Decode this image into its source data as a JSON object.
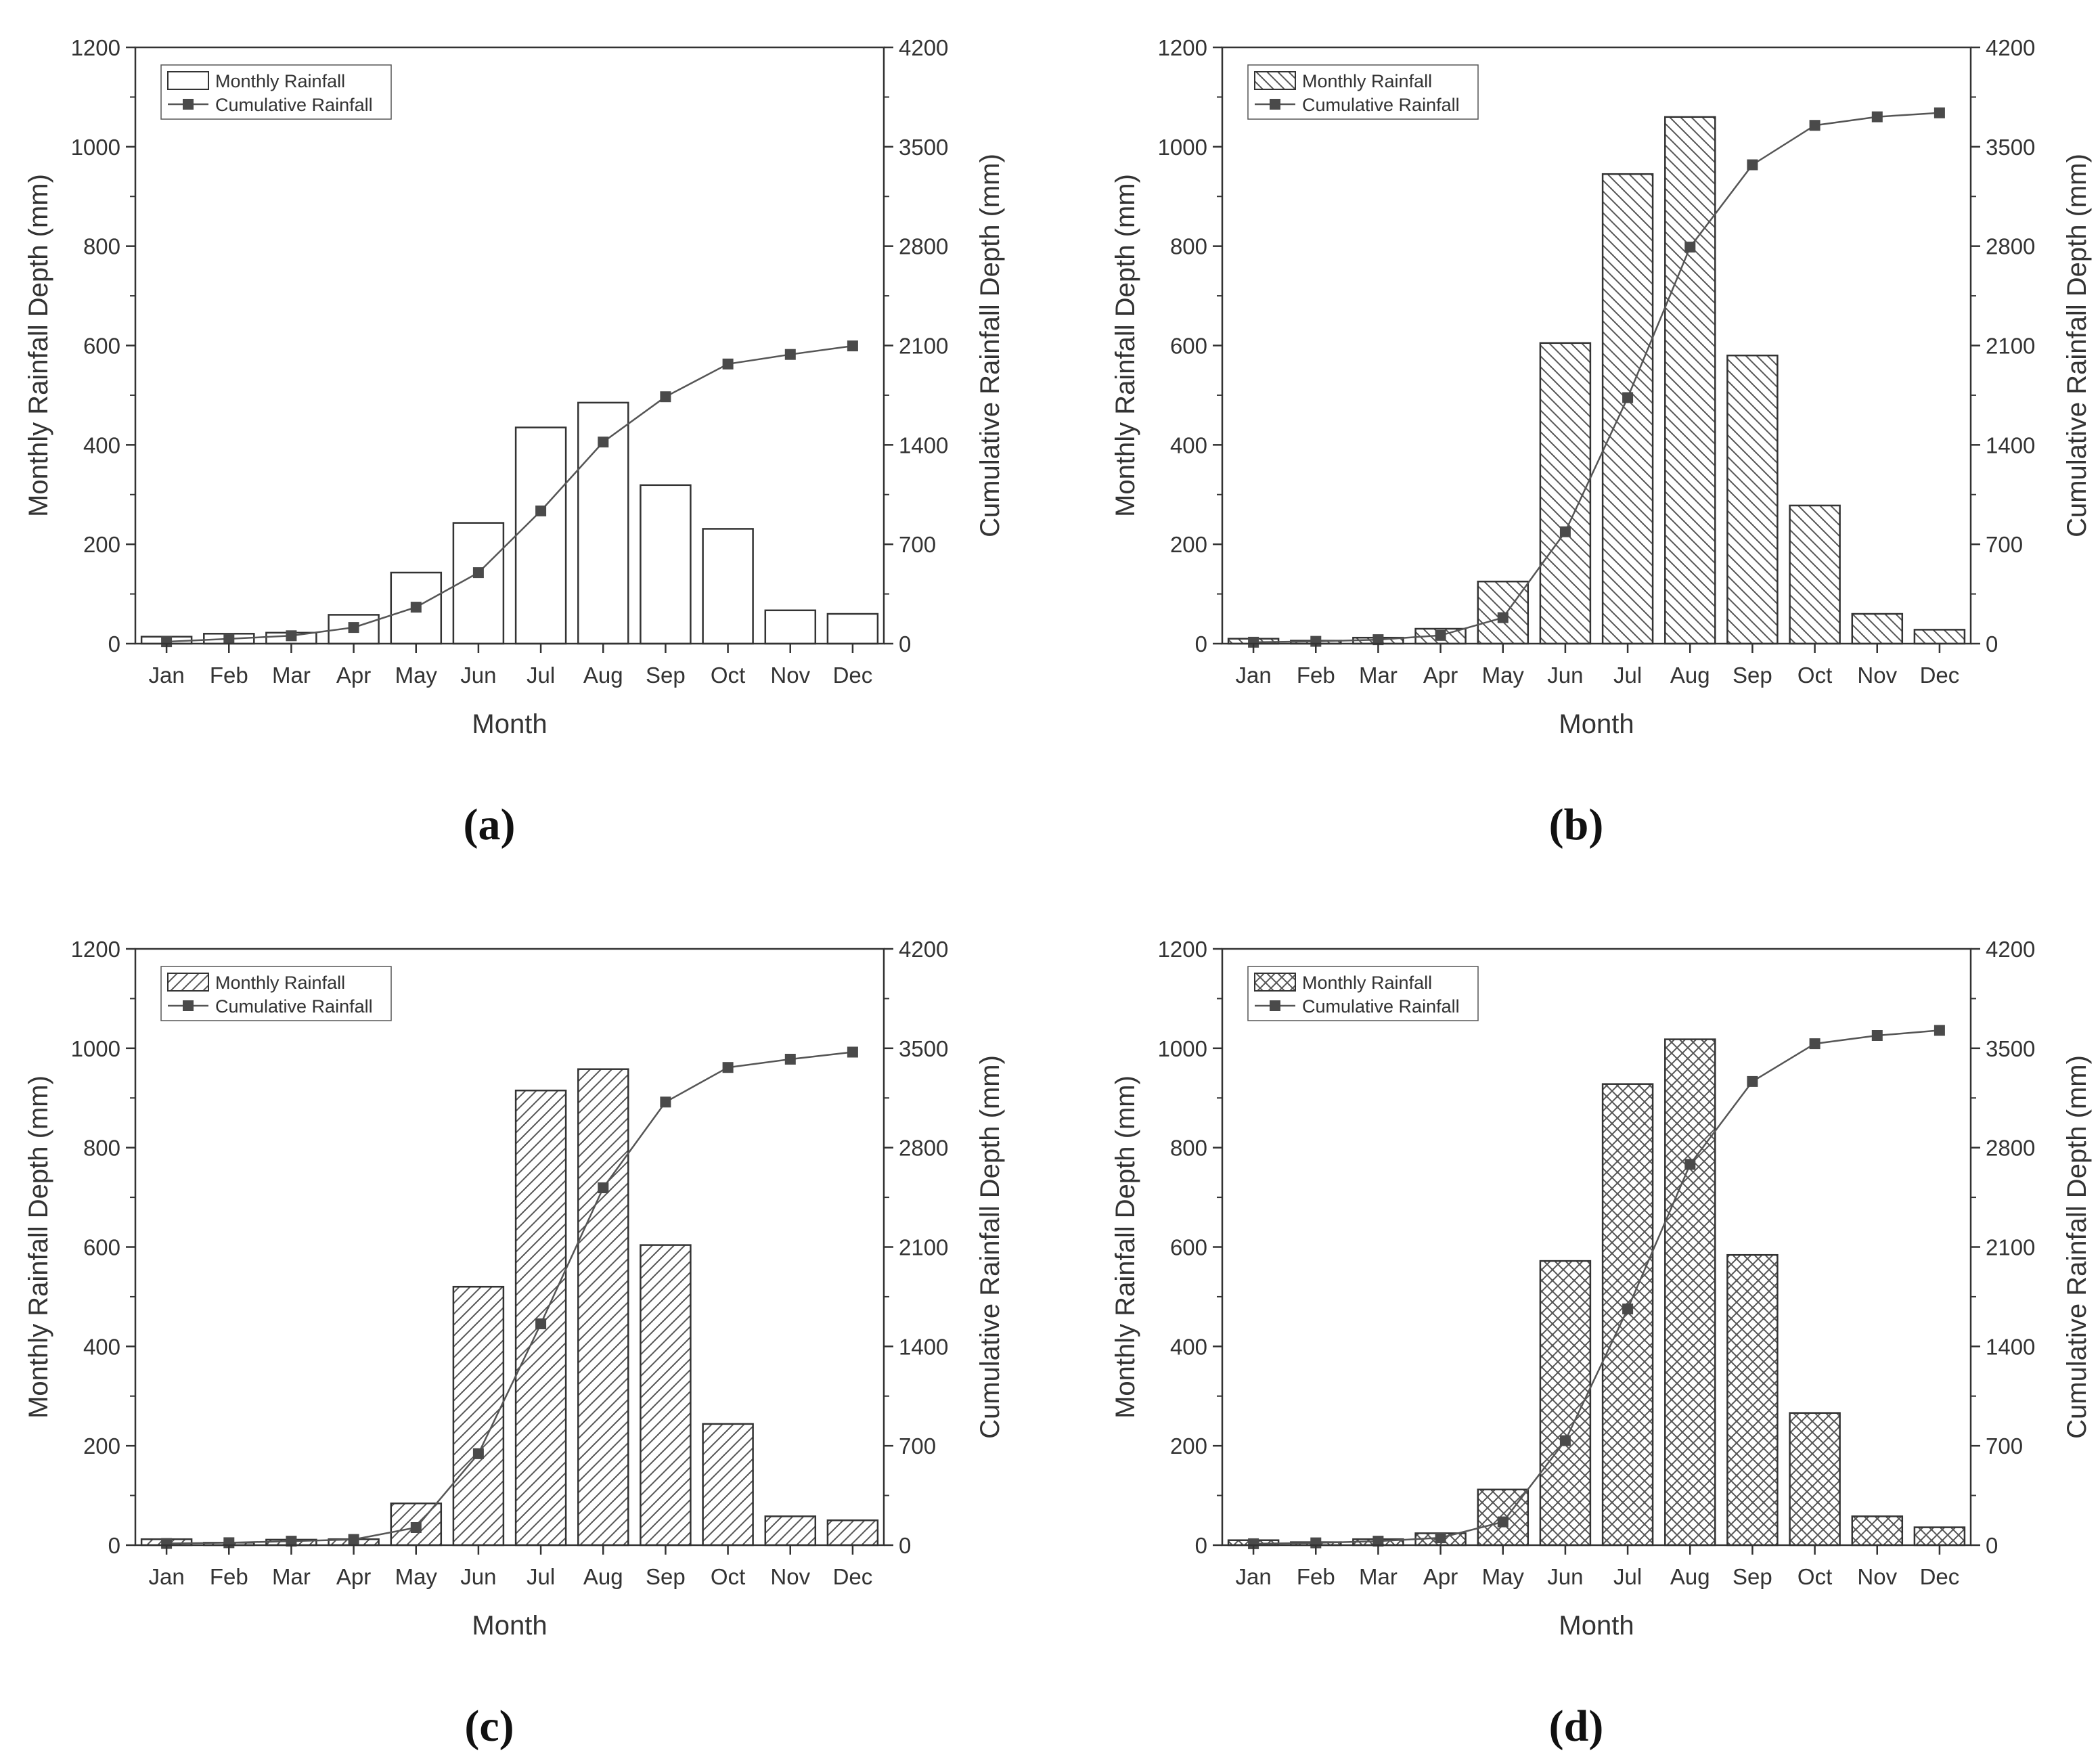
{
  "figure": {
    "shared": {
      "months": [
        "Jan",
        "Feb",
        "Mar",
        "Apr",
        "May",
        "Jun",
        "Jul",
        "Aug",
        "Sep",
        "Oct",
        "Nov",
        "Dec"
      ],
      "xlabel": "Month",
      "ylabel_left": "Monthly Rainfall Depth (mm)",
      "ylabel_right": "Cumulative Rainfall Depth (mm)",
      "left_ticks": [
        "0",
        "200",
        "400",
        "600",
        "800",
        "1000",
        "1200"
      ],
      "right_ticks": [
        "0",
        "700",
        "1400",
        "2100",
        "2800",
        "3500",
        "4200"
      ],
      "legend_bar": "Monthly Rainfall",
      "legend_line": "Cumulative Rainfall",
      "colors": {
        "line": "#555555",
        "marker": "#4a4a4a",
        "axis": "#333333",
        "bar_edge": "#333333"
      }
    }
  },
  "chart_data": [
    {
      "type": "bar",
      "panel": "a",
      "caption": "(a)",
      "pattern": "none",
      "categories": [
        "Jan",
        "Feb",
        "Mar",
        "Apr",
        "May",
        "Jun",
        "Jul",
        "Aug",
        "Sep",
        "Oct",
        "Nov",
        "Dec"
      ],
      "series": [
        {
          "name": "Monthly Rainfall",
          "type": "bar",
          "axis": "left",
          "values": [
            14,
            20,
            22,
            58,
            143,
            243,
            435,
            485,
            319,
            231,
            67,
            60
          ]
        },
        {
          "name": "Cumulative Rainfall",
          "type": "line",
          "axis": "right",
          "values": [
            14,
            34,
            56,
            114,
            257,
            500,
            935,
            1420,
            1739,
            1970,
            2037,
            2097
          ]
        }
      ],
      "xlabel": "Month",
      "ylabel": "Monthly Rainfall Depth (mm)",
      "ylabel_right": "Cumulative Rainfall Depth (mm)",
      "ylim": [
        0,
        1200
      ],
      "ylim_right": [
        0,
        4200
      ],
      "legend": "top-left",
      "grid": false
    },
    {
      "type": "bar",
      "panel": "b",
      "caption": "(b)",
      "pattern": "hatch-back",
      "categories": [
        "Jan",
        "Feb",
        "Mar",
        "Apr",
        "May",
        "Jun",
        "Jul",
        "Aug",
        "Sep",
        "Oct",
        "Nov",
        "Dec"
      ],
      "series": [
        {
          "name": "Monthly Rainfall",
          "type": "bar",
          "axis": "left",
          "values": [
            10,
            6,
            12,
            30,
            125,
            605,
            945,
            1060,
            580,
            278,
            60,
            28
          ]
        },
        {
          "name": "Cumulative Rainfall",
          "type": "line",
          "axis": "right",
          "values": [
            10,
            16,
            28,
            58,
            183,
            788,
            1733,
            2793,
            3373,
            3651,
            3711,
            3739
          ]
        }
      ],
      "xlabel": "Month",
      "ylabel": "Monthly Rainfall Depth (mm)",
      "ylabel_right": "Cumulative Rainfall Depth (mm)",
      "ylim": [
        0,
        1200
      ],
      "ylim_right": [
        0,
        4200
      ],
      "legend": "top-left",
      "grid": false
    },
    {
      "type": "bar",
      "panel": "c",
      "caption": "(c)",
      "pattern": "hatch-forward",
      "categories": [
        "Jan",
        "Feb",
        "Mar",
        "Apr",
        "May",
        "Jun",
        "Jul",
        "Aug",
        "Sep",
        "Oct",
        "Nov",
        "Dec"
      ],
      "series": [
        {
          "name": "Monthly Rainfall",
          "type": "bar",
          "axis": "left",
          "values": [
            12,
            5,
            11,
            12,
            84,
            520,
            915,
            958,
            604,
            244,
            58,
            50
          ]
        },
        {
          "name": "Cumulative Rainfall",
          "type": "line",
          "axis": "right",
          "values": [
            12,
            17,
            28,
            40,
            124,
            644,
            1559,
            2517,
            3121,
            3365,
            3423,
            3473
          ]
        }
      ],
      "xlabel": "Month",
      "ylabel": "Monthly Rainfall Depth (mm)",
      "ylabel_right": "Cumulative Rainfall Depth (mm)",
      "ylim": [
        0,
        1200
      ],
      "ylim_right": [
        0,
        4200
      ],
      "legend": "top-left",
      "grid": false
    },
    {
      "type": "bar",
      "panel": "d",
      "caption": "(d)",
      "pattern": "crosshatch",
      "categories": [
        "Jan",
        "Feb",
        "Mar",
        "Apr",
        "May",
        "Jun",
        "Jul",
        "Aug",
        "Sep",
        "Oct",
        "Nov",
        "Dec"
      ],
      "series": [
        {
          "name": "Monthly Rainfall",
          "type": "bar",
          "axis": "left",
          "values": [
            10,
            6,
            12,
            24,
            112,
            572,
            928,
            1018,
            584,
            266,
            58,
            36
          ]
        },
        {
          "name": "Cumulative Rainfall",
          "type": "line",
          "axis": "right",
          "values": [
            10,
            16,
            28,
            52,
            164,
            736,
            1664,
            2682,
            3266,
            3532,
            3590,
            3626
          ]
        }
      ],
      "xlabel": "Month",
      "ylabel": "Monthly Rainfall Depth (mm)",
      "ylabel_right": "Cumulative Rainfall Depth (mm)",
      "ylim": [
        0,
        1200
      ],
      "ylim_right": [
        0,
        4200
      ],
      "legend": "top-left",
      "grid": false
    }
  ]
}
